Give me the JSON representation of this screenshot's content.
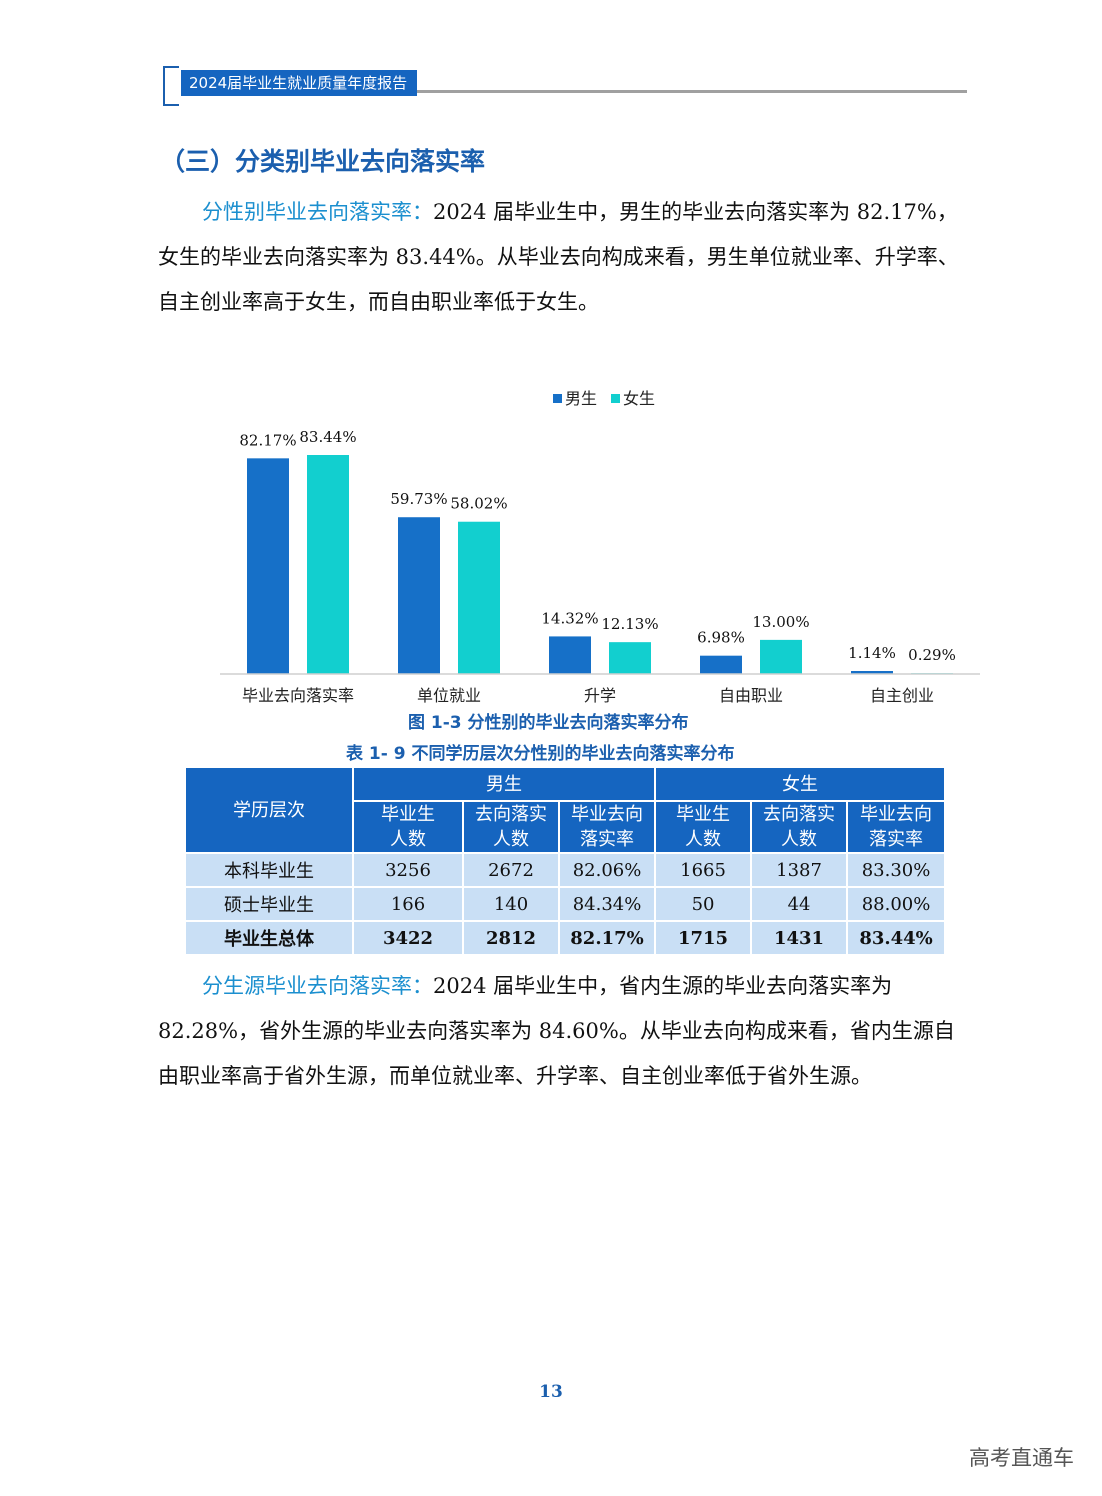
{
  "header": {
    "title": "2024届毕业生就业质量年度报告"
  },
  "section_title": "（三）分类别毕业去向落实率",
  "para1": {
    "lead": "分性别毕业去向落实率：",
    "text_line1": "2024 届毕业生中，男生的毕业去向落实率为 82.17%，",
    "text_line2": "女生的毕业去向落实率为 83.44%。从毕业去向构成来看，男生单位就业率、升学率、",
    "text_line3": "自主创业率高于女生，而自由职业率低于女生。"
  },
  "chart_data": {
    "type": "bar",
    "title": "",
    "xlabel": "",
    "ylabel": "",
    "categories": [
      "毕业去向落实率",
      "单位就业",
      "升学",
      "自由职业",
      "自主创业"
    ],
    "series": [
      {
        "name": "男生",
        "color": "#1670c8",
        "values": [
          82.17,
          59.73,
          14.32,
          6.98,
          1.14
        ],
        "labels": [
          "82.17%",
          "59.73%",
          "14.32%",
          "6.98%",
          "1.14%"
        ]
      },
      {
        "name": "女生",
        "color": "#12cfcf",
        "values": [
          83.44,
          58.02,
          12.13,
          13.0,
          0.29
        ],
        "labels": [
          "83.44%",
          "58.02%",
          "12.13%",
          "13.00%",
          "0.29%"
        ]
      }
    ],
    "ylim": [
      0,
      85
    ],
    "grid": false,
    "legend": "top-center"
  },
  "figure_caption": "图 1-3  分性别的毕业去向落实率分布",
  "table_caption": "表 1- 9  不同学历层次分性别的毕业去向落实率分布",
  "table": {
    "row_header": "学历层次",
    "group_male": "男生",
    "group_female": "女生",
    "sub_headers": [
      [
        "毕业生",
        "人数"
      ],
      [
        "去向落实",
        "人数"
      ],
      [
        "毕业去向",
        "落实率"
      ],
      [
        "毕业生",
        "人数"
      ],
      [
        "去向落实",
        "人数"
      ],
      [
        "毕业去向",
        "落实率"
      ]
    ],
    "rows": [
      {
        "label": "本科毕业生",
        "cells": [
          "3256",
          "2672",
          "82.06%",
          "1665",
          "1387",
          "83.30%"
        ]
      },
      {
        "label": "硕士毕业生",
        "cells": [
          "166",
          "140",
          "84.34%",
          "50",
          "44",
          "88.00%"
        ]
      },
      {
        "label": "毕业生总体",
        "cells": [
          "3422",
          "2812",
          "82.17%",
          "1715",
          "1431",
          "83.44%"
        ]
      }
    ]
  },
  "para2": {
    "lead": "分生源毕业去向落实率：",
    "text_line1": "2024 届毕业生中，省内生源的毕业去向落实率为",
    "text_line2": "82.28%，省外生源的毕业去向落实率为 84.60%。从毕业去向构成来看，省内生源自",
    "text_line3": "由职业率高于省外生源，而单位就业率、升学率、自主创业率低于省外生源。"
  },
  "page_number": "13",
  "watermark": "高考直通车"
}
